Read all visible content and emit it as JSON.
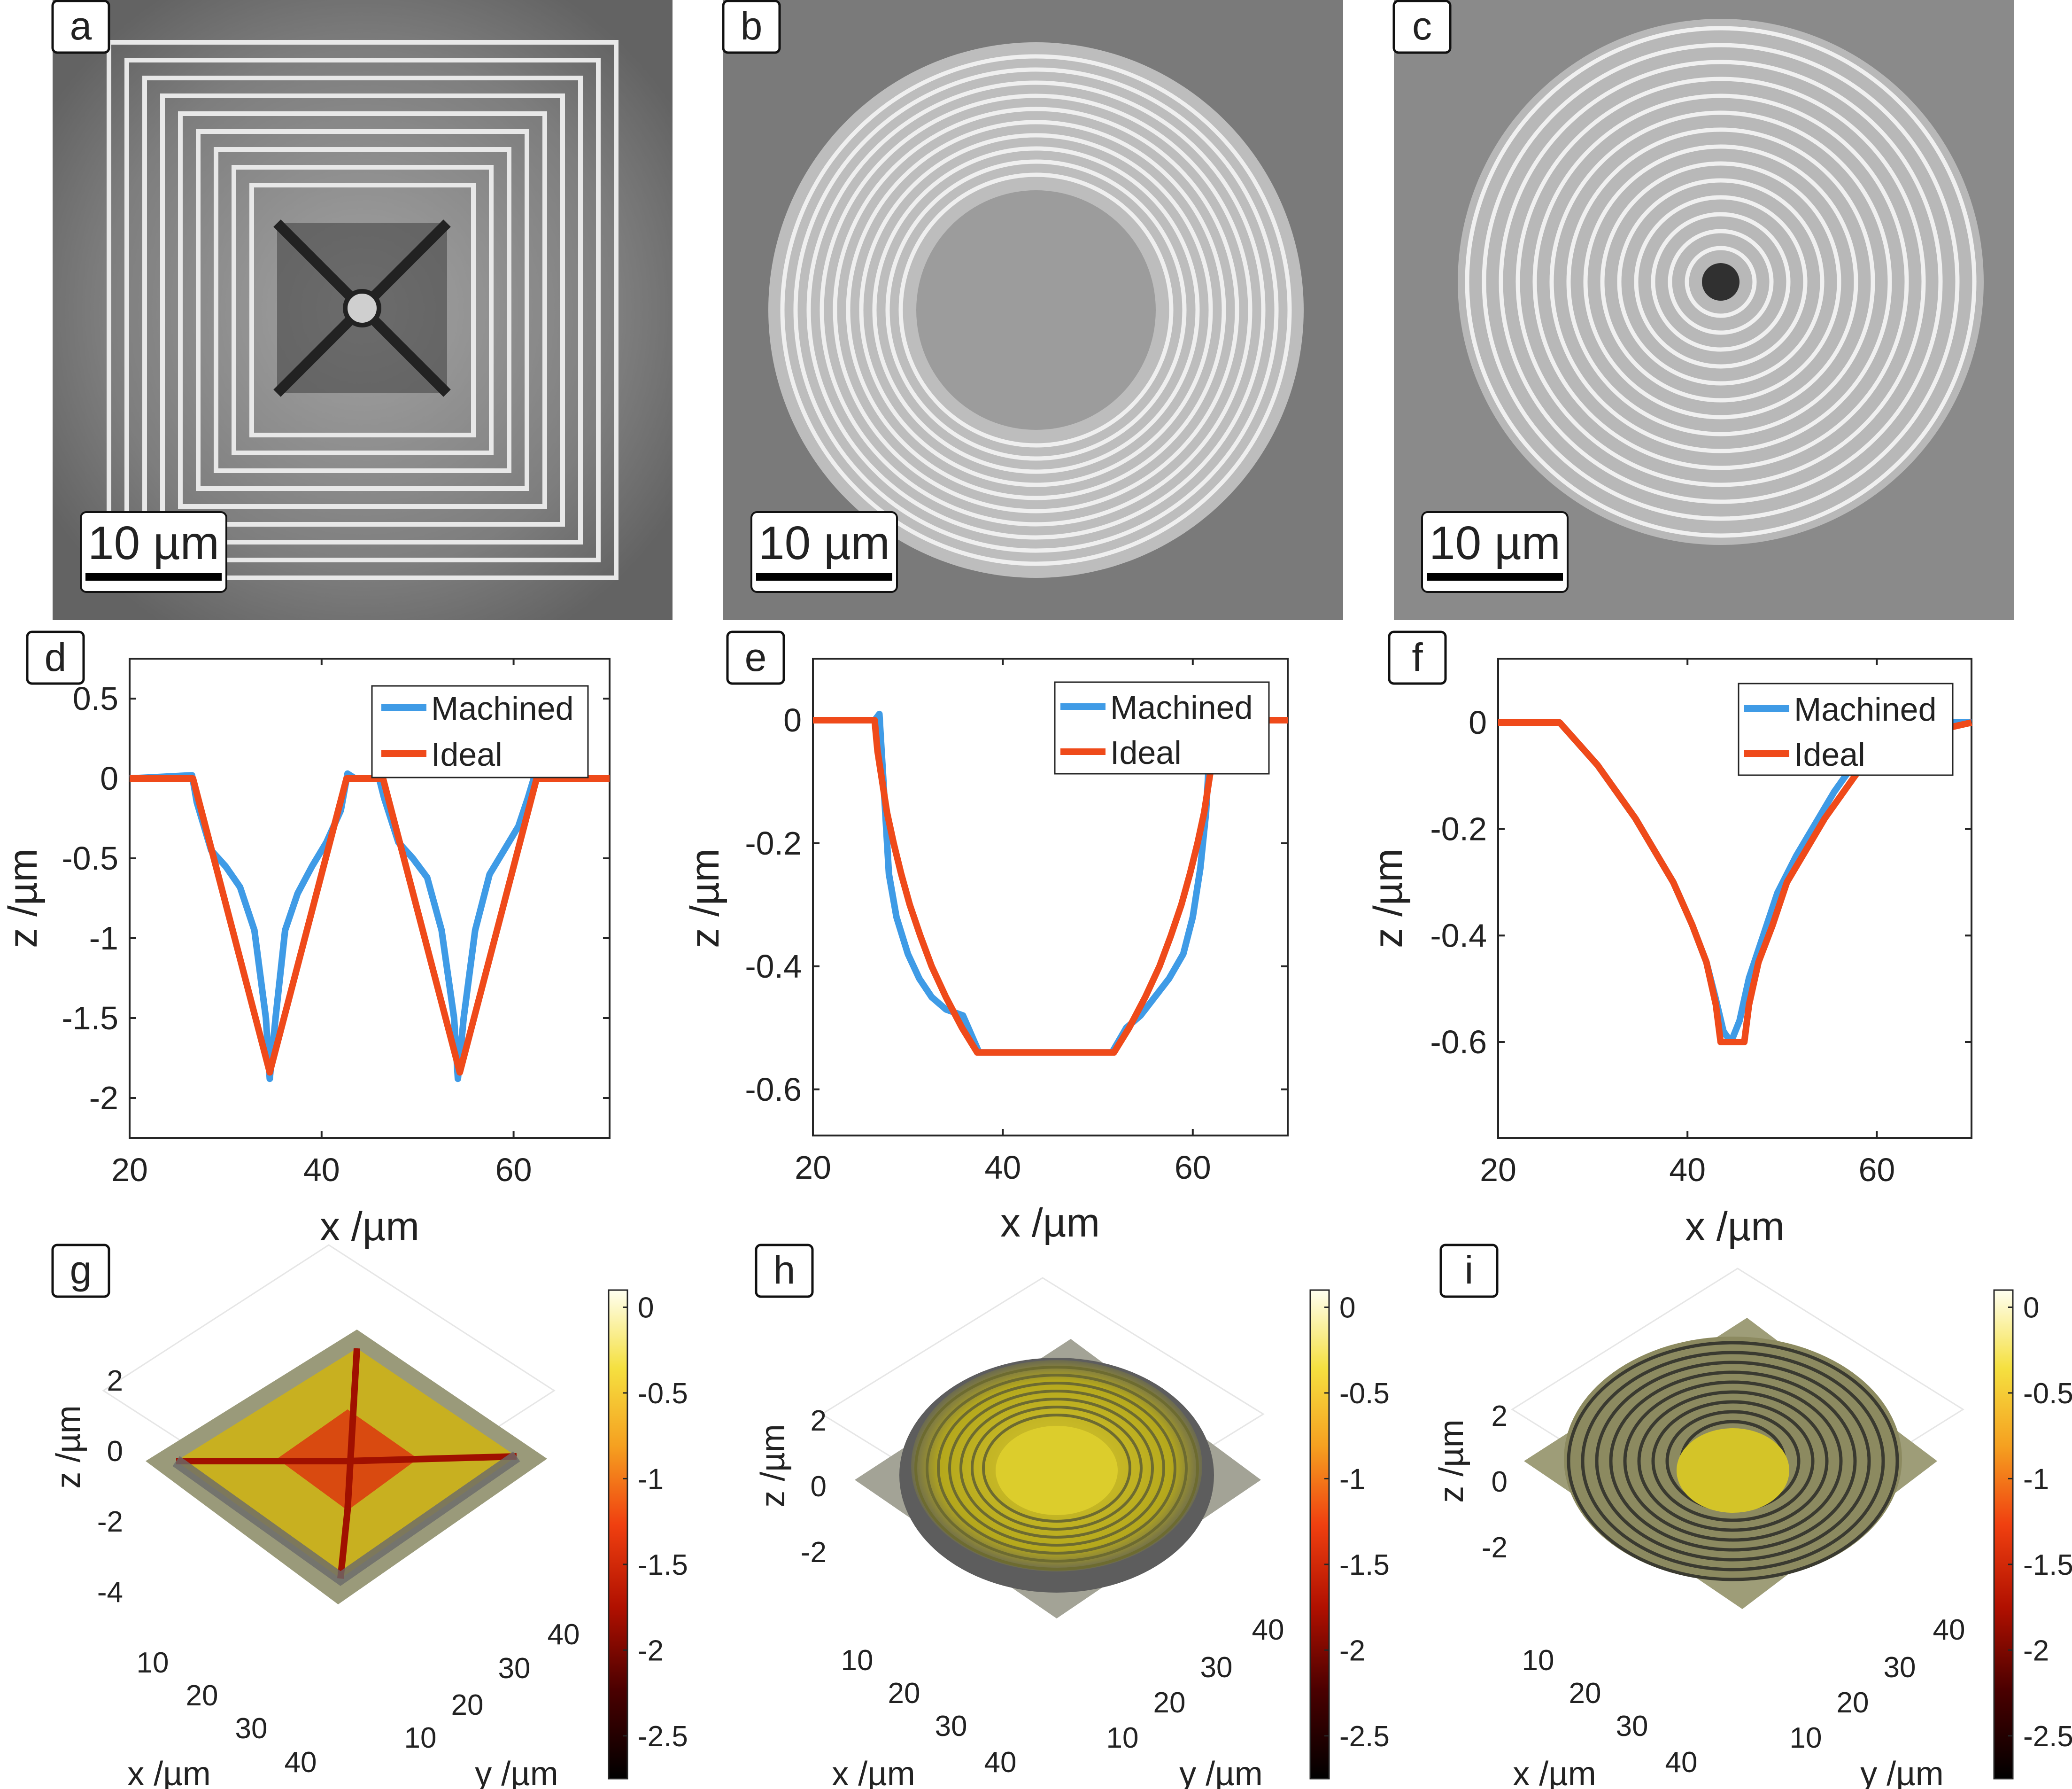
{
  "panels": {
    "a": {
      "letter": "a",
      "scale_label": "10 µm",
      "shape": "pyramid"
    },
    "b": {
      "letter": "b",
      "scale_label": "10 µm",
      "shape": "cylinder"
    },
    "c": {
      "letter": "c",
      "scale_label": "10 µm",
      "shape": "cone"
    },
    "g": {
      "letter": "g",
      "x_label": "x /µm",
      "y_label": "y /µm",
      "z_label": "z /µm",
      "z_ticks": [
        "2",
        "0",
        "-2",
        "-4"
      ],
      "x_ticks": [
        "10",
        "20",
        "30",
        "40"
      ],
      "y_ticks": [
        "10",
        "20",
        "30",
        "40"
      ]
    },
    "h": {
      "letter": "h",
      "x_label": "x /µm",
      "y_label": "y /µm",
      "z_label": "z /µm",
      "z_ticks": [
        "2",
        "0",
        "-2"
      ],
      "x_ticks": [
        "10",
        "20",
        "30",
        "40"
      ],
      "y_ticks": [
        "10",
        "20",
        "30",
        "40"
      ]
    },
    "i": {
      "letter": "i",
      "x_label": "x /µm",
      "y_label": "y /µm",
      "z_label": "z /µm",
      "z_ticks": [
        "2",
        "0",
        "-2"
      ],
      "x_ticks": [
        "10",
        "20",
        "30",
        "40"
      ],
      "y_ticks": [
        "10",
        "20",
        "30",
        "40"
      ]
    }
  },
  "colorbar": {
    "ticks": [
      "0",
      "-0.5",
      "-1",
      "-1.5",
      "-2",
      "-2.5"
    ],
    "range": [
      -2.75,
      0.1
    ]
  },
  "colors": {
    "machined": "#3f9be6",
    "ideal": "#ef4a1a",
    "frame": "#262626"
  },
  "chart_data": [
    {
      "panel": "d",
      "type": "line",
      "xlabel": "x /µm",
      "ylabel": "z /µm",
      "xlim": [
        20,
        70
      ],
      "ylim": [
        -2.25,
        0.75
      ],
      "x_ticks": [
        20,
        40,
        60
      ],
      "y_ticks": [
        0.5,
        0,
        -0.5,
        -1,
        -1.5,
        -2
      ],
      "x_tick_labels": [
        "20",
        "40",
        "60"
      ],
      "y_tick_labels": [
        "0.5",
        "0",
        "-0.5",
        "-1",
        "-1.5",
        "-2"
      ],
      "legend": [
        "Machined",
        "Ideal"
      ],
      "legend_position": "top-right",
      "series": [
        {
          "name": "Machined",
          "x": [
            20,
            26.5,
            27,
            28.5,
            30,
            31.5,
            33,
            34.2,
            34.6,
            35.2,
            36.2,
            37.5,
            39,
            40.5,
            42,
            42.7,
            43.5,
            46,
            46.5,
            48,
            49.5,
            51,
            52.5,
            53.8,
            54.2,
            54.8,
            56,
            57.5,
            59,
            60.5,
            61.5,
            62.2,
            63,
            70
          ],
          "y": [
            0,
            0.02,
            -0.15,
            -0.45,
            -0.55,
            -0.68,
            -0.95,
            -1.5,
            -1.88,
            -1.5,
            -0.95,
            -0.72,
            -0.55,
            -0.4,
            -0.2,
            0.03,
            0,
            0,
            -0.12,
            -0.4,
            -0.5,
            -0.62,
            -0.95,
            -1.5,
            -1.88,
            -1.5,
            -0.95,
            -0.6,
            -0.45,
            -0.3,
            -0.12,
            0.02,
            0,
            0
          ]
        },
        {
          "name": "Ideal",
          "x": [
            20,
            26.6,
            34.6,
            42.6,
            46.4,
            54.4,
            62.4,
            70
          ],
          "y": [
            0,
            0,
            -1.84,
            0,
            0,
            -1.84,
            0,
            0
          ]
        }
      ]
    },
    {
      "panel": "e",
      "type": "line",
      "xlabel": "x /µm",
      "ylabel": "z /µm",
      "xlim": [
        20,
        70
      ],
      "ylim": [
        -0.675,
        0.1
      ],
      "x_ticks": [
        20,
        40,
        60
      ],
      "y_ticks": [
        0,
        -0.2,
        -0.4,
        -0.6
      ],
      "x_tick_labels": [
        "20",
        "40",
        "60"
      ],
      "y_tick_labels": [
        "0",
        "-0.2",
        "-0.4",
        "-0.6"
      ],
      "legend": [
        "Machined",
        "Ideal"
      ],
      "legend_position": "top-right",
      "series": [
        {
          "name": "Machined",
          "x": [
            20,
            26.5,
            27,
            27.5,
            28,
            28.8,
            30,
            31.2,
            32.5,
            34,
            35.8,
            37.5,
            51.5,
            53,
            54.5,
            56,
            57.5,
            59,
            60,
            60.8,
            61.4,
            61.8,
            62.5,
            70
          ],
          "y": [
            0,
            0,
            0.01,
            -0.12,
            -0.25,
            -0.32,
            -0.38,
            -0.42,
            -0.45,
            -0.47,
            -0.48,
            -0.54,
            -0.54,
            -0.5,
            -0.48,
            -0.45,
            -0.42,
            -0.38,
            -0.32,
            -0.24,
            -0.15,
            -0.04,
            0,
            0
          ]
        },
        {
          "name": "Ideal",
          "x": [
            20,
            26.5,
            26.8,
            27.3,
            27.8,
            28.5,
            29.3,
            30.2,
            31.3,
            32.5,
            34,
            35.7,
            37.3,
            51.7,
            53.3,
            55,
            56.5,
            57.7,
            58.8,
            59.7,
            60.5,
            61.2,
            61.7,
            62.2,
            62.6,
            70
          ],
          "y": [
            0,
            0,
            -0.05,
            -0.1,
            -0.15,
            -0.2,
            -0.25,
            -0.3,
            -0.35,
            -0.4,
            -0.45,
            -0.5,
            -0.54,
            -0.54,
            -0.5,
            -0.45,
            -0.4,
            -0.35,
            -0.3,
            -0.25,
            -0.2,
            -0.15,
            -0.1,
            -0.05,
            0,
            0
          ]
        }
      ]
    },
    {
      "panel": "f",
      "type": "line",
      "xlabel": "x /µm",
      "ylabel": "z /µm",
      "xlim": [
        20,
        70
      ],
      "ylim": [
        -0.78,
        0.12
      ],
      "x_ticks": [
        20,
        40,
        60
      ],
      "y_ticks": [
        0,
        -0.2,
        -0.4,
        -0.6
      ],
      "x_tick_labels": [
        "20",
        "40",
        "60"
      ],
      "y_tick_labels": [
        "0",
        "-0.2",
        "-0.4",
        "-0.6"
      ],
      "legend": [
        "Machined",
        "Ideal"
      ],
      "legend_position": "top-right",
      "series": [
        {
          "name": "Machined",
          "x": [
            20,
            26.5,
            28.5,
            30.5,
            32.5,
            34.5,
            36.5,
            38.5,
            40.5,
            42,
            43,
            43.8,
            44.6,
            45.5,
            46.5,
            48,
            49.5,
            51.5,
            53.5,
            55.5,
            57.5,
            59.5,
            60.5,
            70
          ],
          "y": [
            0,
            0,
            -0.04,
            -0.08,
            -0.13,
            -0.18,
            -0.24,
            -0.3,
            -0.38,
            -0.45,
            -0.52,
            -0.58,
            -0.6,
            -0.56,
            -0.48,
            -0.4,
            -0.32,
            -0.25,
            -0.19,
            -0.13,
            -0.08,
            -0.04,
            0,
            0
          ]
        },
        {
          "name": "Ideal",
          "x": [
            20,
            26.5,
            28.5,
            30.5,
            32.5,
            34.5,
            36.5,
            38.5,
            40.5,
            42,
            43,
            43.5,
            46,
            46.5,
            47.5,
            49,
            50.5,
            52.5,
            54.5,
            56.5,
            58.5,
            60,
            70
          ],
          "y": [
            0,
            0,
            -0.04,
            -0.08,
            -0.13,
            -0.18,
            -0.24,
            -0.3,
            -0.38,
            -0.45,
            -0.53,
            -0.6,
            -0.6,
            -0.53,
            -0.45,
            -0.38,
            -0.3,
            -0.24,
            -0.18,
            -0.13,
            -0.08,
            -0.04,
            0
          ]
        }
      ]
    }
  ]
}
